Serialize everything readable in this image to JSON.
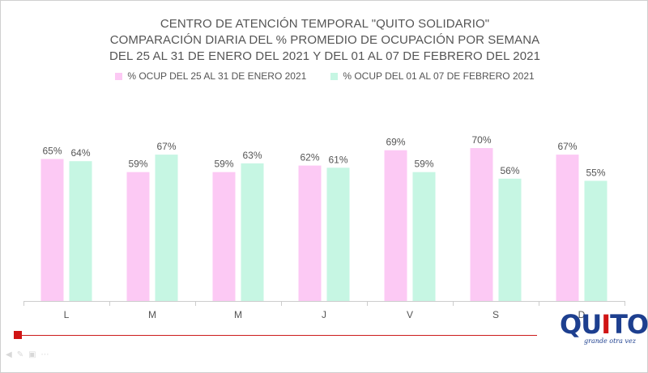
{
  "title_lines": [
    "CENTRO DE ATENCIÓN TEMPORAL \"QUITO SOLIDARIO\"",
    "COMPARACIÓN  DIARIA DEL %  PROMEDIO DE OCUPACIÓN POR SEMANA",
    "DEL 25 AL 31 DE ENERO DEL 2021 Y DEL 01 AL 07 DE FEBRERO DEL 2021"
  ],
  "chart_data": {
    "type": "bar",
    "categories": [
      "L",
      "M",
      "M",
      "J",
      "V",
      "S",
      "D"
    ],
    "series": [
      {
        "name": "% OCUP DEL 25 AL 31 DE ENERO 2021",
        "values": [
          65,
          59,
          59,
          62,
          69,
          70,
          67
        ],
        "labels": [
          "65%",
          "59%",
          "59%",
          "62%",
          "69%",
          "70%",
          "67%"
        ],
        "color": "#fcc9f4"
      },
      {
        "name": "% OCUP DEL 01 AL 07 DE FEBRERO 2021",
        "values": [
          64,
          67,
          63,
          61,
          59,
          56,
          55
        ],
        "labels": [
          "64%",
          "67%",
          "63%",
          "61%",
          "59%",
          "56%",
          "55%"
        ],
        "color": "#c6f6e3"
      }
    ],
    "ylim": [
      0,
      100
    ],
    "grid": false,
    "legend_position": "top",
    "axis_line_color": "#cccccc",
    "label_color": "#555555"
  },
  "logo": {
    "letters": [
      "Q",
      "U",
      "I",
      "T",
      "O"
    ],
    "colors": [
      "#1d3f8f",
      "#1d3f8f",
      "#d01414",
      "#1d3f8f",
      "#1d3f8f"
    ],
    "tagline": "grande otra vez"
  },
  "nav_icons": [
    "arrow-left-icon",
    "pen-icon",
    "slides-icon",
    "options-icon"
  ]
}
